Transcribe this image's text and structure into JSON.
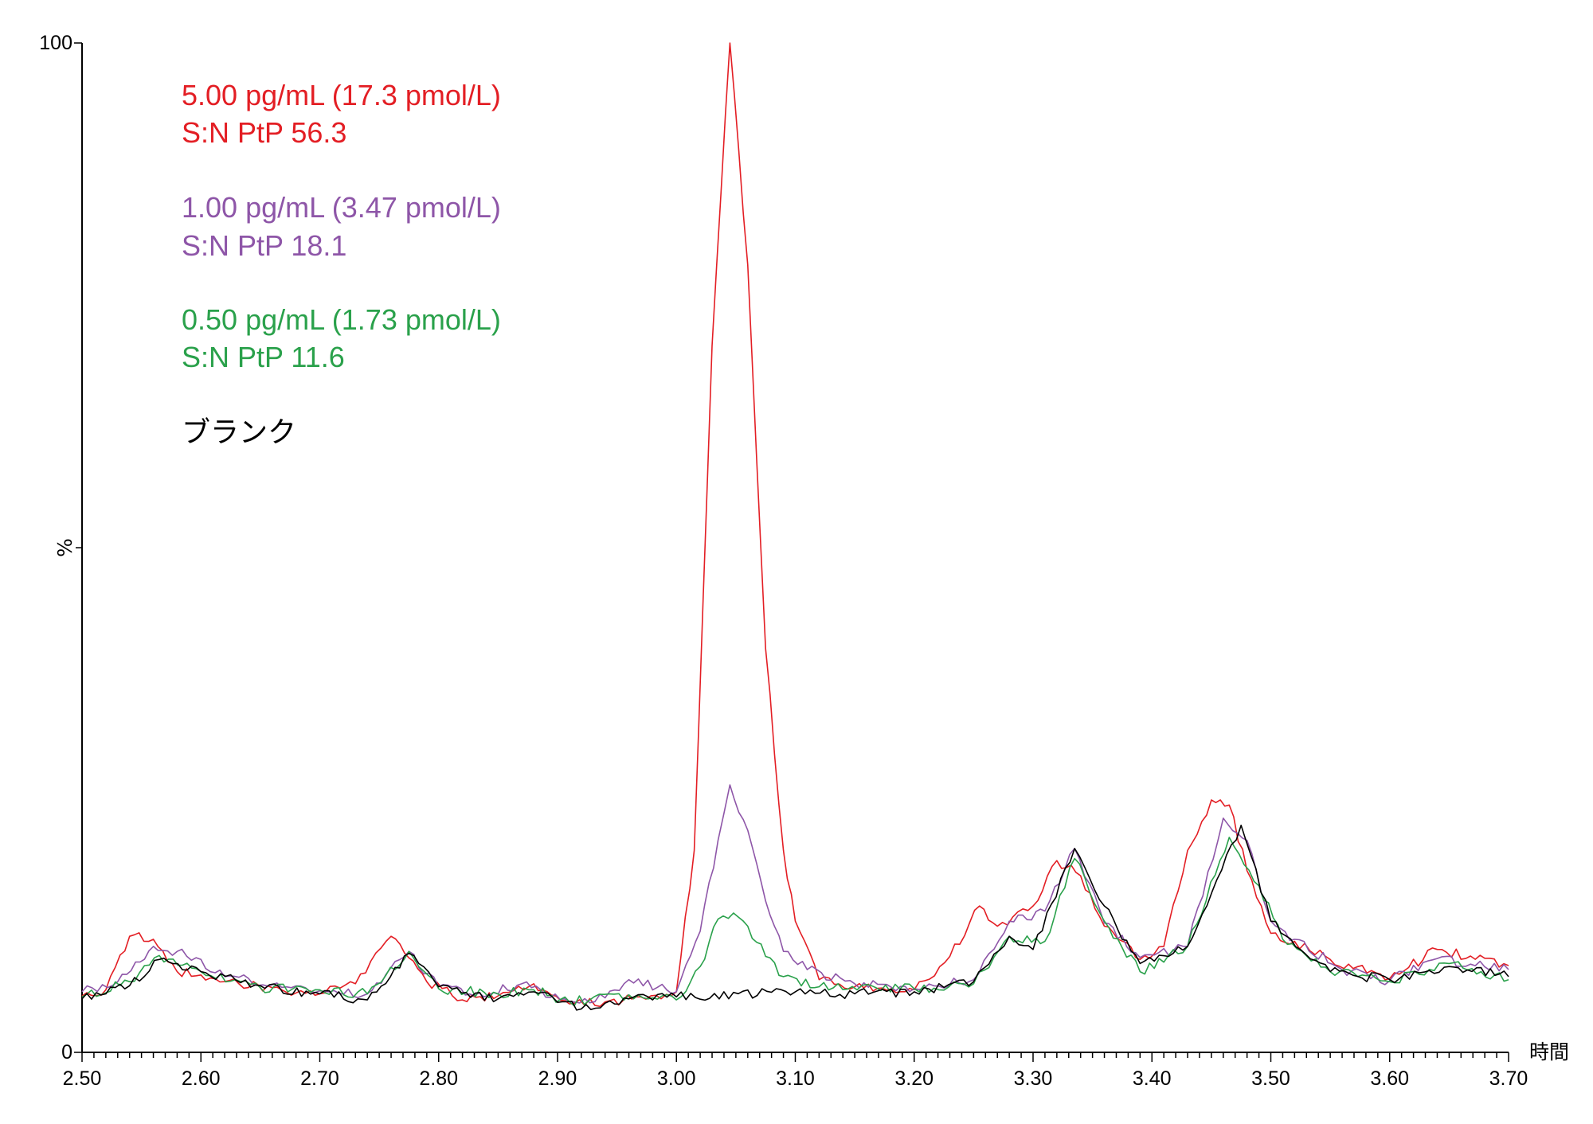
{
  "chart_data": {
    "type": "line",
    "title": "",
    "xlabel": "時間",
    "ylabel": "%",
    "xlim": [
      2.5,
      3.7
    ],
    "ylim": [
      0,
      100
    ],
    "x_ticks": [
      "2.50",
      "2.60",
      "2.70",
      "2.80",
      "2.90",
      "3.00",
      "3.10",
      "3.20",
      "3.30",
      "3.40",
      "3.50",
      "3.60",
      "3.70"
    ],
    "y_ticks": [
      "0",
      "100"
    ],
    "grid": false,
    "legend": "none",
    "annotations": [
      {
        "text": "5.00 pg/mL (17.3 pmol/L)",
        "color": "#e31e24"
      },
      {
        "text": "S:N PtP 56.3",
        "color": "#e31e24"
      },
      {
        "text": "1.00 pg/mL (3.47 pmol/L)",
        "color": "#8e56a8"
      },
      {
        "text": "S:N PtP 18.1",
        "color": "#8e56a8"
      },
      {
        "text": "0.50 pg/mL (1.73 pmol/L)",
        "color": "#2aa14b"
      },
      {
        "text": "S:N PtP 11.6",
        "color": "#2aa14b"
      },
      {
        "text": "ブランク",
        "color": "#000000"
      }
    ],
    "series": [
      {
        "color": "#e31e24",
        "points": [
          [
            2.5,
            5.6
          ],
          [
            2.52,
            6.2
          ],
          [
            2.54,
            11.5
          ],
          [
            2.56,
            11.2
          ],
          [
            2.58,
            8
          ],
          [
            2.62,
            7
          ],
          [
            2.66,
            6.4
          ],
          [
            2.7,
            5.8
          ],
          [
            2.73,
            6.8
          ],
          [
            2.76,
            11.5
          ],
          [
            2.79,
            7
          ],
          [
            2.82,
            5.2
          ],
          [
            2.85,
            5.6
          ],
          [
            2.88,
            6.8
          ],
          [
            2.91,
            4.8
          ],
          [
            2.94,
            5
          ],
          [
            2.97,
            5.5
          ],
          [
            3.0,
            6
          ],
          [
            3.015,
            20
          ],
          [
            3.03,
            70
          ],
          [
            3.045,
            100
          ],
          [
            3.06,
            78
          ],
          [
            3.075,
            40
          ],
          [
            3.09,
            20
          ],
          [
            3.1,
            13
          ],
          [
            3.12,
            7.2
          ],
          [
            3.15,
            6.5
          ],
          [
            3.2,
            6.2
          ],
          [
            3.23,
            9.5
          ],
          [
            3.255,
            14.5
          ],
          [
            3.27,
            12.5
          ],
          [
            3.3,
            14.5
          ],
          [
            3.32,
            19
          ],
          [
            3.34,
            17.5
          ],
          [
            3.36,
            12.5
          ],
          [
            3.39,
            9.2
          ],
          [
            3.41,
            10.5
          ],
          [
            3.43,
            20
          ],
          [
            3.45,
            25
          ],
          [
            3.465,
            24.5
          ],
          [
            3.48,
            18
          ],
          [
            3.5,
            11.8
          ],
          [
            3.52,
            11
          ],
          [
            3.55,
            9.2
          ],
          [
            3.6,
            7.3
          ],
          [
            3.64,
            10.2
          ],
          [
            3.7,
            8.6
          ]
        ]
      },
      {
        "color": "#8e56a8",
        "points": [
          [
            2.5,
            6
          ],
          [
            2.53,
            7
          ],
          [
            2.56,
            10.5
          ],
          [
            2.58,
            10
          ],
          [
            2.62,
            7.5
          ],
          [
            2.66,
            6.7
          ],
          [
            2.7,
            6.1
          ],
          [
            2.74,
            5.8
          ],
          [
            2.775,
            10
          ],
          [
            2.8,
            6.5
          ],
          [
            2.83,
            5.6
          ],
          [
            2.87,
            6.8
          ],
          [
            2.91,
            5
          ],
          [
            2.94,
            5.4
          ],
          [
            2.96,
            7.2
          ],
          [
            3.0,
            6
          ],
          [
            3.02,
            12
          ],
          [
            3.035,
            21
          ],
          [
            3.045,
            26.5
          ],
          [
            3.06,
            22
          ],
          [
            3.075,
            15
          ],
          [
            3.09,
            10
          ],
          [
            3.11,
            8.2
          ],
          [
            3.15,
            6.8
          ],
          [
            3.2,
            6.3
          ],
          [
            3.25,
            7.2
          ],
          [
            3.28,
            13
          ],
          [
            3.31,
            14
          ],
          [
            3.335,
            20.2
          ],
          [
            3.36,
            12.8
          ],
          [
            3.39,
            9.4
          ],
          [
            3.43,
            10.5
          ],
          [
            3.46,
            23.2
          ],
          [
            3.48,
            21
          ],
          [
            3.5,
            13
          ],
          [
            3.52,
            11.2
          ],
          [
            3.56,
            8.2
          ],
          [
            3.6,
            7.1
          ],
          [
            3.64,
            9.3
          ],
          [
            3.7,
            8.2
          ]
        ]
      },
      {
        "color": "#2aa14b",
        "points": [
          [
            2.5,
            5.5
          ],
          [
            2.54,
            7
          ],
          [
            2.565,
            9.6
          ],
          [
            2.6,
            8
          ],
          [
            2.65,
            6.4
          ],
          [
            2.7,
            6.2
          ],
          [
            2.74,
            5.8
          ],
          [
            2.775,
            10
          ],
          [
            2.8,
            6.3
          ],
          [
            2.85,
            5.8
          ],
          [
            2.88,
            6.2
          ],
          [
            2.91,
            5
          ],
          [
            2.96,
            5.7
          ],
          [
            3.0,
            5.2
          ],
          [
            3.02,
            8.5
          ],
          [
            3.035,
            13.2
          ],
          [
            3.048,
            13.8
          ],
          [
            3.06,
            12.5
          ],
          [
            3.075,
            9.5
          ],
          [
            3.09,
            7.5
          ],
          [
            3.12,
            6.5
          ],
          [
            3.2,
            6.3
          ],
          [
            3.25,
            6.8
          ],
          [
            3.28,
            11.5
          ],
          [
            3.31,
            11
          ],
          [
            3.335,
            19.2
          ],
          [
            3.36,
            13
          ],
          [
            3.39,
            8
          ],
          [
            3.43,
            10.5
          ],
          [
            3.465,
            21.3
          ],
          [
            3.49,
            16.5
          ],
          [
            3.51,
            11.2
          ],
          [
            3.55,
            8
          ],
          [
            3.6,
            7
          ],
          [
            3.65,
            8.8
          ],
          [
            3.7,
            7.2
          ]
        ]
      },
      {
        "color": "#000000",
        "points": [
          [
            2.5,
            5.3
          ],
          [
            2.54,
            6.6
          ],
          [
            2.565,
            9.2
          ],
          [
            2.6,
            8
          ],
          [
            2.65,
            6.6
          ],
          [
            2.7,
            5.8
          ],
          [
            2.74,
            5.2
          ],
          [
            2.775,
            9.8
          ],
          [
            2.8,
            6.5
          ],
          [
            2.85,
            5.3
          ],
          [
            2.88,
            6
          ],
          [
            2.92,
            4.3
          ],
          [
            2.96,
            5.3
          ],
          [
            3.0,
            5.5
          ],
          [
            3.1,
            6
          ],
          [
            3.15,
            5.8
          ],
          [
            3.2,
            6
          ],
          [
            3.25,
            7
          ],
          [
            3.28,
            11.5
          ],
          [
            3.3,
            10.2
          ],
          [
            3.335,
            20.2
          ],
          [
            3.36,
            14.5
          ],
          [
            3.39,
            8.8
          ],
          [
            3.43,
            10.5
          ],
          [
            3.475,
            22.5
          ],
          [
            3.5,
            13
          ],
          [
            3.55,
            8
          ],
          [
            3.6,
            7.2
          ],
          [
            3.65,
            8.5
          ],
          [
            3.7,
            7.5
          ]
        ]
      }
    ]
  }
}
